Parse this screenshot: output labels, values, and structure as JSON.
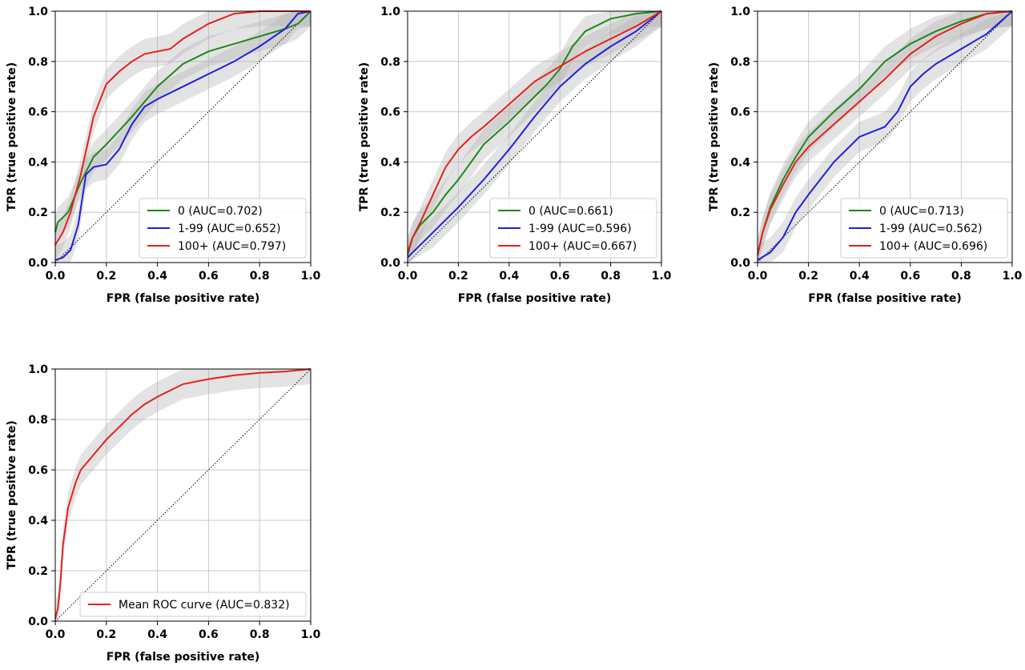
{
  "colors": {
    "green": "#1a8a1a",
    "blue": "#1f1fe0",
    "red": "#e8201a",
    "band": "#b0b0b0",
    "grid": "#c8c8c8"
  },
  "chart_data": [
    {
      "type": "line",
      "xlabel": "FPR (false positive rate)",
      "ylabel": "TPR (true positive rate)",
      "xlim": [
        0,
        1
      ],
      "ylim": [
        0,
        1
      ],
      "xticks": [
        "0.0",
        "0.2",
        "0.4",
        "0.6",
        "0.8",
        "1.0"
      ],
      "yticks": [
        "0.0",
        "0.2",
        "0.4",
        "0.6",
        "0.8",
        "1.0"
      ],
      "grid": true,
      "legend_position": "lower-right",
      "series": [
        {
          "name": "0 (AUC=0.702)",
          "color": "#1a8a1a",
          "x": [
            0,
            0.01,
            0.05,
            0.1,
            0.15,
            0.2,
            0.3,
            0.4,
            0.5,
            0.6,
            0.7,
            0.8,
            0.9,
            0.95,
            1.0
          ],
          "y": [
            0.12,
            0.16,
            0.2,
            0.32,
            0.42,
            0.47,
            0.58,
            0.7,
            0.79,
            0.84,
            0.87,
            0.9,
            0.93,
            0.95,
            1.0
          ]
        },
        {
          "name": "1-99 (AUC=0.652)",
          "color": "#1f1fe0",
          "x": [
            0,
            0.03,
            0.06,
            0.09,
            0.12,
            0.15,
            0.2,
            0.25,
            0.3,
            0.35,
            0.4,
            0.5,
            0.6,
            0.7,
            0.8,
            0.9,
            0.95,
            1.0
          ],
          "y": [
            0.01,
            0.02,
            0.05,
            0.15,
            0.35,
            0.38,
            0.39,
            0.45,
            0.55,
            0.62,
            0.65,
            0.7,
            0.75,
            0.8,
            0.86,
            0.93,
            0.99,
            1.0
          ]
        },
        {
          "name": "100+ (AUC=0.797)",
          "color": "#e8201a",
          "x": [
            0,
            0.03,
            0.06,
            0.1,
            0.15,
            0.2,
            0.25,
            0.3,
            0.35,
            0.4,
            0.45,
            0.5,
            0.6,
            0.7,
            0.8,
            1.0
          ],
          "y": [
            0.07,
            0.12,
            0.2,
            0.35,
            0.58,
            0.71,
            0.76,
            0.8,
            0.83,
            0.84,
            0.85,
            0.89,
            0.95,
            0.99,
            1.0,
            1.0
          ]
        }
      ]
    },
    {
      "type": "line",
      "xlabel": "FPR (false positive rate)",
      "ylabel": "TPR (true positive rate)",
      "xlim": [
        0,
        1
      ],
      "ylim": [
        0,
        1
      ],
      "xticks": [
        "0.0",
        "0.2",
        "0.4",
        "0.6",
        "0.8",
        "1.0"
      ],
      "yticks": [
        "0.0",
        "0.2",
        "0.4",
        "0.6",
        "0.8",
        "1.0"
      ],
      "grid": true,
      "legend_position": "lower-right",
      "series": [
        {
          "name": "0 (AUC=0.661)",
          "color": "#1a8a1a",
          "x": [
            0,
            0.02,
            0.05,
            0.1,
            0.15,
            0.2,
            0.25,
            0.3,
            0.4,
            0.5,
            0.55,
            0.6,
            0.65,
            0.7,
            0.8,
            0.9,
            1.0
          ],
          "y": [
            0.03,
            0.1,
            0.15,
            0.2,
            0.27,
            0.33,
            0.4,
            0.47,
            0.56,
            0.66,
            0.71,
            0.77,
            0.86,
            0.92,
            0.97,
            0.99,
            1.0
          ]
        },
        {
          "name": "1-99 (AUC=0.596)",
          "color": "#1f1fe0",
          "x": [
            0,
            0.1,
            0.2,
            0.3,
            0.4,
            0.5,
            0.6,
            0.7,
            0.8,
            0.9,
            1.0
          ],
          "y": [
            0.02,
            0.12,
            0.22,
            0.33,
            0.45,
            0.58,
            0.7,
            0.79,
            0.86,
            0.92,
            1.0
          ]
        },
        {
          "name": "100+ (AUC=0.667)",
          "color": "#e8201a",
          "x": [
            0,
            0.02,
            0.05,
            0.1,
            0.15,
            0.2,
            0.25,
            0.3,
            0.4,
            0.5,
            0.6,
            0.7,
            0.8,
            0.9,
            1.0
          ],
          "y": [
            0.04,
            0.1,
            0.16,
            0.27,
            0.38,
            0.45,
            0.5,
            0.54,
            0.63,
            0.72,
            0.78,
            0.84,
            0.89,
            0.94,
            1.0
          ]
        }
      ]
    },
    {
      "type": "line",
      "xlabel": "FPR (false positive rate)",
      "ylabel": "TPR (true positive rate)",
      "xlim": [
        0,
        1
      ],
      "ylim": [
        0,
        1
      ],
      "xticks": [
        "0.0",
        "0.2",
        "0.4",
        "0.6",
        "0.8",
        "1.0"
      ],
      "yticks": [
        "0.0",
        "0.2",
        "0.4",
        "0.6",
        "0.8",
        "1.0"
      ],
      "grid": true,
      "legend_position": "lower-right",
      "series": [
        {
          "name": "0 (AUC=0.713)",
          "color": "#1a8a1a",
          "x": [
            0,
            0.02,
            0.05,
            0.1,
            0.15,
            0.2,
            0.3,
            0.4,
            0.5,
            0.6,
            0.7,
            0.8,
            0.9,
            1.0
          ],
          "y": [
            0.03,
            0.12,
            0.22,
            0.33,
            0.42,
            0.5,
            0.6,
            0.69,
            0.8,
            0.87,
            0.92,
            0.96,
            0.99,
            1.0
          ]
        },
        {
          "name": "1-99 (AUC=0.562)",
          "color": "#1f1fe0",
          "x": [
            0,
            0.05,
            0.1,
            0.15,
            0.2,
            0.3,
            0.4,
            0.5,
            0.55,
            0.6,
            0.65,
            0.7,
            0.8,
            0.9,
            1.0
          ],
          "y": [
            0.01,
            0.04,
            0.1,
            0.2,
            0.27,
            0.4,
            0.5,
            0.54,
            0.6,
            0.7,
            0.75,
            0.79,
            0.85,
            0.91,
            1.0
          ]
        },
        {
          "name": "100+ (AUC=0.696)",
          "color": "#e8201a",
          "x": [
            0,
            0.02,
            0.05,
            0.1,
            0.15,
            0.2,
            0.3,
            0.4,
            0.5,
            0.6,
            0.7,
            0.8,
            0.9,
            1.0
          ],
          "y": [
            0.03,
            0.12,
            0.21,
            0.31,
            0.4,
            0.46,
            0.55,
            0.64,
            0.73,
            0.83,
            0.9,
            0.95,
            0.99,
            1.0
          ]
        }
      ]
    },
    {
      "type": "line",
      "xlabel": "FPR (false positive rate)",
      "ylabel": "TPR (true positive rate)",
      "xlim": [
        0,
        1
      ],
      "ylim": [
        0,
        1
      ],
      "xticks": [
        "0.0",
        "0.2",
        "0.4",
        "0.6",
        "0.8",
        "1.0"
      ],
      "yticks": [
        "0.0",
        "0.2",
        "0.4",
        "0.6",
        "0.8",
        "1.0"
      ],
      "grid": true,
      "legend_position": "lower-right",
      "series": [
        {
          "name": "Mean ROC curve (AUC=0.832)",
          "color": "#e8201a",
          "x": [
            0,
            0.01,
            0.02,
            0.03,
            0.05,
            0.08,
            0.1,
            0.15,
            0.2,
            0.25,
            0.3,
            0.35,
            0.4,
            0.5,
            0.6,
            0.7,
            0.8,
            0.9,
            1.0
          ],
          "y": [
            0.01,
            0.05,
            0.15,
            0.3,
            0.45,
            0.55,
            0.6,
            0.66,
            0.72,
            0.77,
            0.82,
            0.86,
            0.89,
            0.94,
            0.96,
            0.975,
            0.985,
            0.99,
            1.0
          ]
        }
      ]
    }
  ]
}
